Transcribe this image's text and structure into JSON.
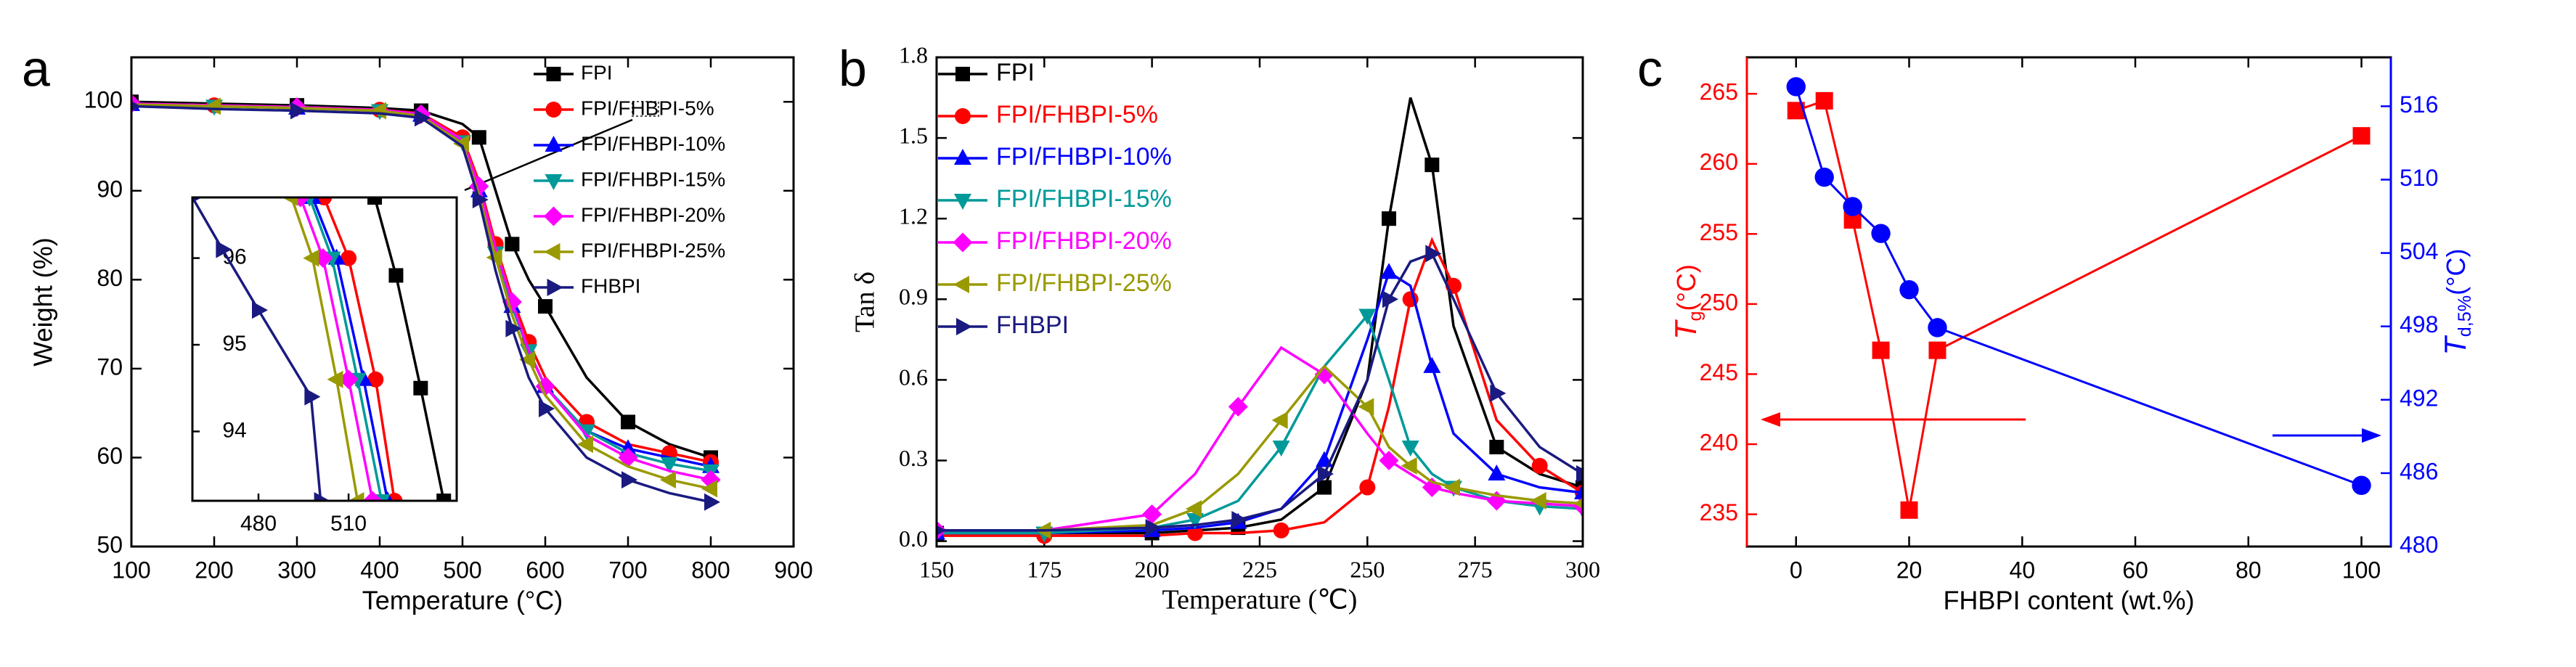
{
  "chart_data": [
    {
      "type": "line",
      "label": "a",
      "xlabel": "Temperature (°C)",
      "ylabel": "Weight (%)",
      "xlim": [
        100,
        900
      ],
      "xticks": [
        100,
        200,
        300,
        400,
        500,
        600,
        700,
        800,
        900
      ],
      "ylim": [
        50,
        105
      ],
      "yticks": [
        50,
        60,
        70,
        80,
        90,
        100
      ],
      "x": [
        100,
        200,
        300,
        400,
        450,
        500,
        520,
        540,
        560,
        580,
        600,
        650,
        700,
        750,
        800
      ],
      "series": [
        {
          "name": "FPI",
          "color": "#000000",
          "marker": "square",
          "values": [
            100,
            99.8,
            99.6,
            99.3,
            99,
            97.5,
            96,
            90,
            84,
            80,
            77,
            69,
            64,
            61.5,
            60
          ]
        },
        {
          "name": "FPI/FHBPI-5%",
          "color": "#ff0000",
          "marker": "circle",
          "values": [
            99.8,
            99.6,
            99.4,
            99.1,
            98.7,
            96,
            91,
            84,
            78,
            73,
            69,
            64,
            61.5,
            60.5,
            59.5
          ]
        },
        {
          "name": "FPI/FHBPI-10%",
          "color": "#0000ff",
          "marker": "up",
          "values": [
            99.7,
            99.5,
            99.3,
            99,
            98.5,
            95.5,
            90,
            83,
            77,
            72,
            68,
            63,
            61,
            60,
            59
          ]
        },
        {
          "name": "FPI/FHBPI-15%",
          "color": "#009999",
          "marker": "down",
          "values": [
            99.7,
            99.5,
            99.3,
            99,
            98.5,
            95.5,
            90,
            83,
            77,
            72,
            68,
            63,
            60.5,
            59.3,
            58.5
          ]
        },
        {
          "name": "FPI/FHBPI-20%",
          "color": "#ff00ff",
          "marker": "diamond",
          "values": [
            99.8,
            99.6,
            99.4,
            99.1,
            98.6,
            95.7,
            90.5,
            83.5,
            77.5,
            72,
            68,
            62.5,
            60,
            58.5,
            57.5
          ]
        },
        {
          "name": "FPI/FHBPI-25%",
          "color": "#999900",
          "marker": "left",
          "values": [
            99.7,
            99.5,
            99.3,
            99,
            98.4,
            95.3,
            89.5,
            82.5,
            76,
            71,
            67,
            61.5,
            59,
            57.5,
            56.5
          ]
        },
        {
          "name": "FHBPI",
          "color": "#1a1a80",
          "marker": "right",
          "values": [
            99.5,
            99.2,
            99,
            98.7,
            98.2,
            95,
            89,
            81,
            74.5,
            69,
            65.5,
            60,
            57.5,
            56,
            55
          ]
        }
      ]
    },
    {
      "type": "line",
      "xlim": [
        458,
        546
      ],
      "xticks": [
        480,
        510
      ],
      "ylim": [
        93.2,
        96.7
      ],
      "yticks": [
        94,
        95,
        96
      ],
      "series": [
        {
          "color": "#000000",
          "marker": "square",
          "x": [
            518.7,
            525.8,
            534,
            541.7
          ],
          "values": [
            96.7,
            95.8,
            94.5,
            93.2
          ]
        },
        {
          "color": "#ff0000",
          "marker": "circle",
          "x": [
            501.8,
            510,
            519,
            525.3
          ],
          "values": [
            96.7,
            96,
            94.6,
            93.2
          ]
        },
        {
          "color": "#0000ff",
          "marker": "up",
          "x": [
            498,
            506,
            515,
            523
          ],
          "values": [
            96.7,
            96,
            94.6,
            93.2
          ]
        },
        {
          "color": "#009999",
          "marker": "down",
          "x": [
            497,
            504.5,
            513,
            521
          ],
          "values": [
            96.7,
            96,
            94.6,
            93.2
          ]
        },
        {
          "color": "#ff00ff",
          "marker": "diamond",
          "x": [
            494,
            501.5,
            510,
            518
          ],
          "values": [
            96.7,
            96,
            94.6,
            93.2
          ]
        },
        {
          "color": "#999900",
          "marker": "left",
          "x": [
            491,
            498,
            506,
            513
          ],
          "values": [
            96.7,
            96,
            94.6,
            93.2
          ]
        },
        {
          "color": "#1a1a80",
          "marker": "right",
          "x": [
            458,
            468,
            480,
            497.5,
            500.7
          ],
          "values": [
            96.7,
            96.1,
            95.4,
            94.4,
            93.2
          ]
        }
      ]
    },
    {
      "type": "line",
      "label": "b",
      "xlabel": "Temperature (℃)",
      "ylabel": "Tan δ",
      "xlim": [
        150,
        300
      ],
      "xticks": [
        150,
        175,
        200,
        225,
        250,
        275,
        300
      ],
      "ylim": [
        -0.02,
        1.8
      ],
      "yticks": [
        {
          "value": 0,
          "label": "0.0"
        },
        0.3,
        0.6,
        0.9,
        1.2,
        1.5,
        1.8
      ],
      "x": [
        150,
        175,
        200,
        210,
        220,
        230,
        240,
        250,
        255,
        260,
        265,
        270,
        280,
        290,
        300
      ],
      "series": [
        {
          "name": "FPI",
          "color": "#000000",
          "marker": "square",
          "values": [
            0.03,
            0.03,
            0.03,
            0.04,
            0.05,
            0.08,
            0.2,
            0.6,
            1.2,
            1.65,
            1.4,
            0.8,
            0.35,
            0.25,
            0.2
          ]
        },
        {
          "name": "FPI/FHBPI-5%",
          "color": "#ff0000",
          "marker": "circle",
          "values": [
            0.02,
            0.02,
            0.02,
            0.03,
            0.03,
            0.04,
            0.07,
            0.2,
            0.5,
            0.9,
            1.12,
            0.95,
            0.45,
            0.28,
            0.18
          ]
        },
        {
          "name": "FPI/FHBPI-10%",
          "color": "#0000ff",
          "marker": "up",
          "values": [
            0.03,
            0.03,
            0.04,
            0.05,
            0.07,
            0.12,
            0.3,
            0.75,
            1.0,
            0.95,
            0.65,
            0.4,
            0.25,
            0.2,
            0.18
          ]
        },
        {
          "name": "FPI/FHBPI-15%",
          "color": "#009999",
          "marker": "down",
          "values": [
            0.03,
            0.03,
            0.05,
            0.08,
            0.15,
            0.35,
            0.65,
            0.84,
            0.6,
            0.35,
            0.25,
            0.2,
            0.15,
            0.13,
            0.12
          ]
        },
        {
          "name": "FPI/FHBPI-20%",
          "color": "#ff00ff",
          "marker": "diamond",
          "values": [
            0.04,
            0.04,
            0.1,
            0.25,
            0.5,
            0.72,
            0.62,
            0.4,
            0.3,
            0.25,
            0.2,
            0.18,
            0.15,
            0.14,
            0.13
          ]
        },
        {
          "name": "FPI/FHBPI-25%",
          "color": "#999900",
          "marker": "left",
          "values": [
            0.04,
            0.04,
            0.06,
            0.12,
            0.25,
            0.45,
            0.65,
            0.5,
            0.35,
            0.28,
            0.22,
            0.2,
            0.17,
            0.15,
            0.14
          ]
        },
        {
          "name": "FHBPI",
          "color": "#1a1a80",
          "marker": "right",
          "values": [
            0.04,
            0.04,
            0.05,
            0.06,
            0.08,
            0.12,
            0.25,
            0.6,
            0.9,
            1.04,
            1.07,
            0.9,
            0.55,
            0.35,
            0.25
          ]
        }
      ]
    },
    {
      "type": "line",
      "label": "c",
      "xlabel": "FHBPI content (wt.%)",
      "ylabel": [
        "T",
        "g",
        "(°C)"
      ],
      "y2label": [
        "T",
        "d,5%",
        "(°C)"
      ],
      "ycolor": "#ff0000",
      "y2color": "#0000ff",
      "xlim": [
        -8.7,
        105.2
      ],
      "xticks": [
        0,
        20,
        40,
        60,
        80,
        100
      ],
      "ylim": [
        232.7,
        267.6
      ],
      "yticks": [
        235,
        240,
        245,
        250,
        255,
        260,
        265
      ],
      "y2lim": [
        480,
        520
      ],
      "y2ticks": [
        480,
        486,
        492,
        498,
        504,
        510,
        516
      ],
      "series": [
        {
          "color": "#ff0000",
          "marker": "square",
          "x": [
            0,
            5,
            10,
            15,
            20,
            25,
            100
          ],
          "values": [
            263.8,
            264.5,
            256,
            246.7,
            235.3,
            246.7,
            262
          ]
        },
        {
          "color": "#0000ff",
          "marker": "circle",
          "axis": "y2",
          "x": [
            0,
            5,
            10,
            15,
            20,
            25,
            100
          ],
          "values": [
            517.6,
            510.2,
            507.8,
            505.6,
            501,
            497.9,
            485
          ]
        }
      ]
    }
  ]
}
